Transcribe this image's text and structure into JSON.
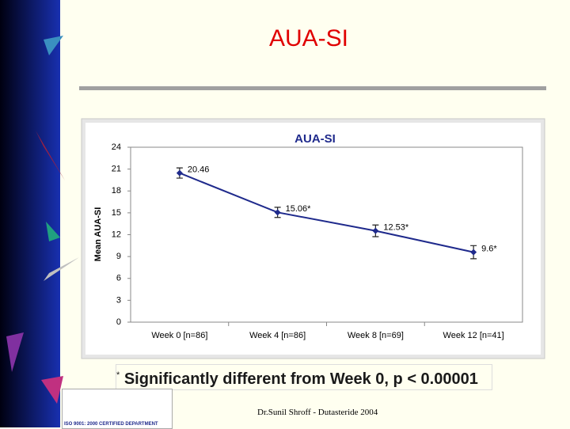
{
  "slide_title": "AUA-SI",
  "chart_data": {
    "type": "line",
    "title": "AUA-SI",
    "ylabel": "Mean AUA-SI",
    "categories": [
      "Week 0 [n=86]",
      "Week 4 [n=86]",
      "Week 8 [n=69]",
      "Week 12 [n=41]"
    ],
    "values": [
      20.46,
      15.06,
      12.53,
      9.6
    ],
    "value_labels": [
      "20.46",
      "15.06*",
      "12.53*",
      "9.6*"
    ],
    "errors": [
      0.7,
      0.7,
      0.8,
      0.9
    ],
    "color": "#1f2a8c",
    "ylim": [
      0,
      24
    ],
    "yticks": [
      0,
      3,
      6,
      9,
      12,
      15,
      18,
      21,
      24
    ],
    "grid": false
  },
  "footnote": {
    "marker": "*",
    "text": "Significantly different from Week 0, p < 0.00001"
  },
  "footer": "Dr.Sunil Shroff - Dutasteride 2004",
  "logo_caption": "ISO 9001: 2000 CERTIFIED DEPARTMENT"
}
